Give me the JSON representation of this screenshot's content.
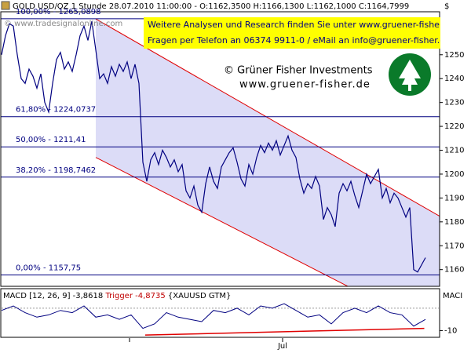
{
  "chart_data": {
    "type": "line",
    "title": "GOLD USD/OZ 1 Stunde 28.07.2010 11:00:00 - O:1162,3500 H:1166,1300 L:1162,1000 C:1164,7999",
    "watermark": "© www.tradesignalonline.com",
    "y_unit": "$",
    "annotations": [
      "Weitere Analysen und Research finden Sie unter www.gruener-fisher.de",
      "Fragen per Telefon an 06374 9911-0 / eMail an info@gruener-fisher.de",
      "© Grüner Fisher Investments",
      "www.gruener-fisher.de"
    ],
    "ylim": [
      1153,
      1268
    ],
    "yticks": [
      1160,
      1170,
      1180,
      1190,
      1200,
      1210,
      1220,
      1230,
      1240,
      1250
    ],
    "xtick_labels": [
      "Jul"
    ],
    "fib_levels": [
      {
        "value": 1265.0898,
        "label": "100,00% - 1265,0898"
      },
      {
        "value": 1224.0737,
        "label": "61,80% - 1224,0737"
      },
      {
        "value": 1211.41,
        "label": "50,00% - 1211,41"
      },
      {
        "value": 1198.7462,
        "label": "38,20% - 1198,7462"
      },
      {
        "value": 1157.75,
        "label": "0,00% - 1157,75"
      }
    ],
    "channel": {
      "x": [
        24,
        112
      ],
      "upper": [
        1265,
        1182
      ],
      "lower": [
        1207,
        1133
      ],
      "color": "#e00000",
      "fill": "#dcdcf7"
    },
    "series": [
      {
        "name": "GOLD USD/OZ",
        "color": "#000080",
        "values": [
          1250,
          1258,
          1263,
          1262,
          1250,
          1240,
          1238,
          1244,
          1241,
          1236,
          1242,
          1230,
          1226,
          1238,
          1248,
          1251,
          1244,
          1247,
          1243,
          1250,
          1258,
          1262,
          1256,
          1264,
          1252,
          1240,
          1242,
          1238,
          1245,
          1241,
          1246,
          1243,
          1247,
          1240,
          1246,
          1238,
          1205,
          1197,
          1206,
          1209,
          1204,
          1210,
          1207,
          1203,
          1206,
          1201,
          1204,
          1193,
          1190,
          1195,
          1187,
          1184,
          1196,
          1203,
          1197,
          1194,
          1203,
          1206,
          1209,
          1211,
          1205,
          1198,
          1195,
          1204,
          1200,
          1207,
          1212,
          1209,
          1213,
          1210,
          1214,
          1208,
          1212,
          1216,
          1210,
          1207,
          1198,
          1192,
          1196,
          1194,
          1199,
          1195,
          1181,
          1186,
          1183,
          1178,
          1192,
          1196,
          1193,
          1197,
          1191,
          1186,
          1193,
          1200,
          1196,
          1199,
          1202,
          1190,
          1194,
          1188,
          1192,
          1190,
          1186,
          1182,
          1186,
          1160,
          1159,
          1162,
          1165
        ]
      }
    ],
    "macd": {
      "labels": [
        "MACD [12, 26, 9] -3,8618",
        "Trigger -4,8735",
        "{XAUUSD GTM}"
      ],
      "axis_label": "MACI",
      "ylim": [
        -13,
        8
      ],
      "yticks": [
        -10
      ],
      "color": "#000080",
      "values": [
        -1,
        1,
        -2,
        -4,
        -3,
        -1,
        -2,
        1,
        -4,
        -3,
        -5,
        -3,
        -9,
        -7,
        -2,
        -4,
        -5,
        -6,
        -1,
        -2,
        0,
        -3,
        1,
        0,
        2,
        -1,
        -4,
        -3,
        -7,
        -2,
        0,
        -2,
        1,
        -2,
        -3,
        -8,
        -5
      ],
      "trend": {
        "x": [
          12.2,
          35.9
        ],
        "values": [
          -12,
          -9
        ],
        "color": "#e00000"
      }
    }
  }
}
